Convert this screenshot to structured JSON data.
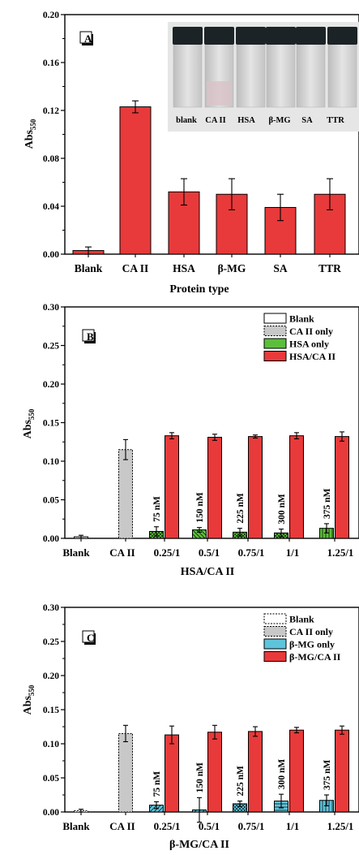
{
  "chart_data": [
    {
      "panel": "A",
      "type": "bar",
      "xlabel": "Protein type",
      "ylabel": "Abs",
      "ylabel_sub": "550",
      "ylim": [
        0,
        0.2
      ],
      "yticks": [
        "0.00",
        "0.04",
        "0.08",
        "0.12",
        "0.16",
        "0.20"
      ],
      "categories": [
        "Blank",
        "CA II",
        "HSA",
        "β-MG",
        "SA",
        "TTR"
      ],
      "values": [
        0.003,
        0.123,
        0.052,
        0.05,
        0.039,
        0.05
      ],
      "errors": [
        0.003,
        0.005,
        0.011,
        0.013,
        0.011,
        0.013
      ],
      "bar_color": "#e83a3a",
      "inset_labels": [
        "blank",
        "CA II",
        "HSA",
        "β-MG",
        "SA",
        "TTR"
      ]
    },
    {
      "panel": "B",
      "type": "bar",
      "xlabel": "HSA/CA II",
      "ylabel": "Abs",
      "ylabel_sub": "550",
      "ylim": [
        0,
        0.3
      ],
      "yticks": [
        "0.00",
        "0.05",
        "0.10",
        "0.15",
        "0.20",
        "0.25",
        "0.30"
      ],
      "categories": [
        "Blank",
        "CA II",
        "0.25/1",
        "0.5/1",
        "0.75/1",
        "1/1",
        "1.25/1"
      ],
      "legend": [
        "Blank",
        "CA II only",
        "HSA only",
        "HSA/CA II"
      ],
      "legend_position": "top-right",
      "blank": {
        "value": 0.002,
        "error": 0.002
      },
      "caii": {
        "value": 0.115,
        "error": 0.013
      },
      "only_values": [
        0.009,
        0.011,
        0.008,
        0.007,
        0.013
      ],
      "only_errors": [
        0.006,
        0.003,
        0.005,
        0.005,
        0.006
      ],
      "mix_values": [
        0.133,
        0.131,
        0.132,
        0.133,
        0.132
      ],
      "mix_errors": [
        0.004,
        0.004,
        0.002,
        0.004,
        0.006
      ],
      "conc_labels": [
        "75 nM",
        "150 nM",
        "225 nM",
        "300 nM",
        "375 nM"
      ],
      "only_color": "#5cbf3c",
      "mix_color": "#e83a3a",
      "caii_color": "#c8c8c8"
    },
    {
      "panel": "C",
      "type": "bar",
      "xlabel": "β-MG/CA II",
      "ylabel": "Abs",
      "ylabel_sub": "550",
      "ylim": [
        0,
        0.3
      ],
      "yticks": [
        "0.00",
        "0.05",
        "0.10",
        "0.15",
        "0.20",
        "0.25",
        "0.30"
      ],
      "categories": [
        "Blank",
        "CA II",
        "0.25/1",
        "0.5/1",
        "0.75/1",
        "1/1",
        "1.25/1"
      ],
      "legend": [
        "Blank",
        "CA II only",
        "β-MG only",
        "β-MG/CA II"
      ],
      "legend_position": "top-right",
      "blank": {
        "value": 0.002,
        "error": 0.002
      },
      "caii": {
        "value": 0.115,
        "error": 0.012
      },
      "only_values": [
        0.01,
        0.003,
        0.012,
        0.016,
        0.017
      ],
      "only_errors": [
        0.005,
        0.018,
        0.004,
        0.01,
        0.008
      ],
      "mix_values": [
        0.113,
        0.117,
        0.118,
        0.12,
        0.12
      ],
      "mix_errors": [
        0.013,
        0.01,
        0.007,
        0.004,
        0.006
      ],
      "conc_labels": [
        "75 nM",
        "150 nM",
        "225 nM",
        "300 nM",
        "375 nM"
      ],
      "only_color": "#5ec4dc",
      "mix_color": "#e83a3a",
      "caii_color": "#c8c8c8"
    }
  ]
}
